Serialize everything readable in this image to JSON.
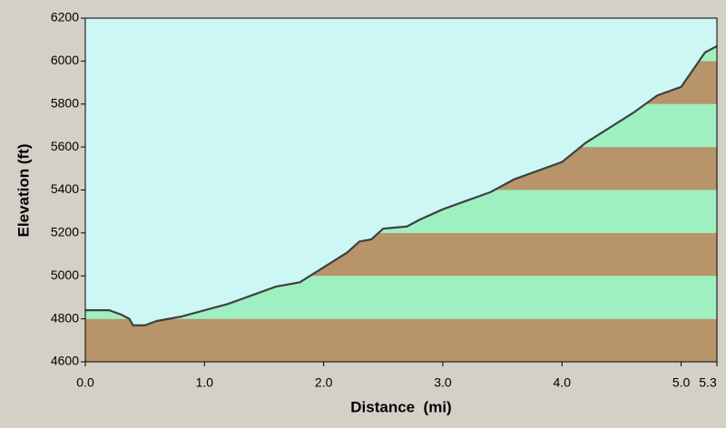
{
  "chart_data": {
    "type": "area",
    "x_label": "Distance  (mi)",
    "y_label": "Elevation (ft)",
    "x": [
      0.0,
      0.2,
      0.3,
      0.37,
      0.4,
      0.5,
      0.6,
      0.8,
      1.0,
      1.2,
      1.4,
      1.6,
      1.8,
      2.0,
      2.2,
      2.3,
      2.4,
      2.5,
      2.7,
      2.8,
      3.0,
      3.2,
      3.4,
      3.6,
      3.8,
      4.0,
      4.2,
      4.4,
      4.6,
      4.8,
      5.0,
      5.1,
      5.2,
      5.3
    ],
    "values": [
      4840,
      4840,
      4820,
      4800,
      4770,
      4770,
      4790,
      4810,
      4840,
      4870,
      4910,
      4950,
      4970,
      5040,
      5110,
      5160,
      5170,
      5220,
      5230,
      5260,
      5310,
      5350,
      5390,
      5450,
      5490,
      5530,
      5620,
      5690,
      5760,
      5840,
      5880,
      5960,
      6040,
      6070
    ],
    "xlim": [
      0,
      5.3
    ],
    "ylim": [
      4600,
      6200
    ],
    "xticks": [
      {
        "value": 0,
        "label": "0.0"
      },
      {
        "value": 1,
        "label": "1.0"
      },
      {
        "value": 2,
        "label": "2.0"
      },
      {
        "value": 3,
        "label": "3.0"
      },
      {
        "value": 4,
        "label": "4.0"
      },
      {
        "value": 5,
        "label": "5.0"
      },
      5.3
    ],
    "yticks": [
      4600,
      4800,
      5000,
      5200,
      5400,
      5600,
      5800,
      6000,
      6200
    ],
    "line_color": "#404040",
    "sky_color": "#ccf7f5",
    "band_colors": [
      "#b8946a",
      "#9ff0c0"
    ]
  }
}
